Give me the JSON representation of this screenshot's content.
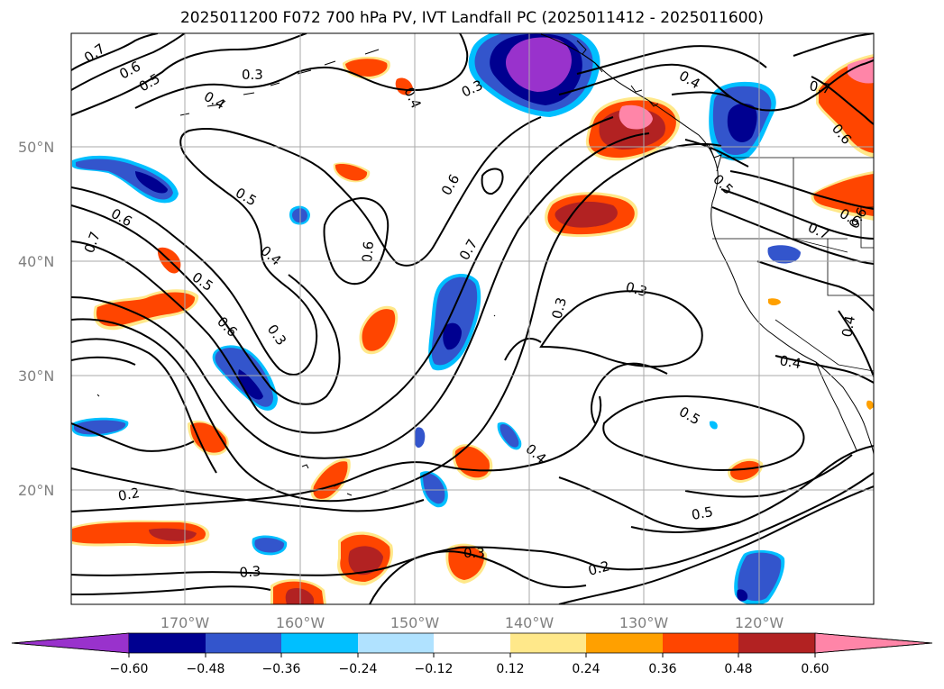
{
  "title": "2025011200 F072 700 hPa PV, IVT Landfall PC (2025011412 - 2025011600)",
  "map": {
    "lon_range": [
      -180,
      -110
    ],
    "lat_range": [
      10,
      60
    ],
    "lat_ticks": [
      "50°N",
      "40°N",
      "30°N",
      "20°N"
    ],
    "lon_ticks": [
      "170°W",
      "160°W",
      "150°W",
      "140°W",
      "130°W",
      "120°W"
    ],
    "grid": true
  },
  "contour_labels": [
    "0.7",
    "0.6",
    "0.5",
    "0.4",
    "0.3",
    "0.4",
    "0.3",
    "0.4",
    "0.7",
    "0.6",
    "0.5",
    "0.6",
    "0.7",
    "0.4",
    "0.5",
    "0.6",
    "0.6",
    "0.6",
    "0.7",
    "0.7",
    "0.6",
    "0.5",
    "0.6",
    "0.3",
    "0.3",
    "0.3",
    "0.4",
    "0.5",
    "0.4",
    "0.2",
    "0.5",
    "0.3",
    "0.3",
    "0.2",
    "0.4"
  ],
  "colorbar": {
    "ticks": [
      "−0.60",
      "−0.48",
      "−0.36",
      "−0.24",
      "−0.12",
      "0.12",
      "0.24",
      "0.36",
      "0.48",
      "0.60"
    ],
    "colors": {
      "c1": "#9932cc",
      "c2": "#000090",
      "c3": "#3355cc",
      "c4": "#00bfff",
      "c5": "#b0e2ff",
      "c6": "#ffffff",
      "c7": "#ffe88a",
      "c8": "#ffa000",
      "c9": "#ff4500",
      "c10": "#b22222",
      "c11": "#ff85a8"
    }
  }
}
